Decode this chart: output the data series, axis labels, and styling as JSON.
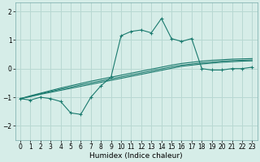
{
  "xlabel": "Humidex (Indice chaleur)",
  "background_color": "#d6ede8",
  "grid_color": "#b8d8d2",
  "line_color": "#1a7a6e",
  "xlim": [
    -0.5,
    23.5
  ],
  "ylim": [
    -2.5,
    2.3
  ],
  "x": [
    0,
    1,
    2,
    3,
    4,
    5,
    6,
    7,
    8,
    9,
    10,
    11,
    12,
    13,
    14,
    15,
    16,
    17,
    18,
    19,
    20,
    21,
    22,
    23
  ],
  "y_main": [
    -1.05,
    -1.1,
    -1.0,
    -1.05,
    -1.15,
    -1.55,
    -1.6,
    -1.0,
    -0.6,
    -0.3,
    1.15,
    1.3,
    1.35,
    1.25,
    1.75,
    1.05,
    0.95,
    1.05,
    0.0,
    -0.05,
    -0.05,
    0.0,
    0.0,
    0.05
  ],
  "y_line1": [
    -1.05,
    -0.98,
    -0.9,
    -0.83,
    -0.76,
    -0.69,
    -0.62,
    -0.55,
    -0.48,
    -0.41,
    -0.34,
    -0.27,
    -0.2,
    -0.13,
    -0.06,
    0.01,
    0.08,
    0.12,
    0.16,
    0.19,
    0.22,
    0.24,
    0.26,
    0.27
  ],
  "y_line2": [
    -1.05,
    -0.97,
    -0.88,
    -0.8,
    -0.72,
    -0.65,
    -0.57,
    -0.5,
    -0.43,
    -0.36,
    -0.29,
    -0.22,
    -0.15,
    -0.08,
    -0.01,
    0.06,
    0.12,
    0.16,
    0.2,
    0.23,
    0.26,
    0.28,
    0.29,
    0.3
  ],
  "y_line3": [
    -1.05,
    -0.95,
    -0.86,
    -0.77,
    -0.68,
    -0.6,
    -0.52,
    -0.44,
    -0.37,
    -0.3,
    -0.23,
    -0.16,
    -0.09,
    -0.02,
    0.05,
    0.12,
    0.18,
    0.22,
    0.26,
    0.29,
    0.31,
    0.33,
    0.34,
    0.35
  ],
  "xticks": [
    0,
    1,
    2,
    3,
    4,
    5,
    6,
    7,
    8,
    9,
    10,
    11,
    12,
    13,
    14,
    15,
    16,
    17,
    18,
    19,
    20,
    21,
    22,
    23
  ],
  "yticks": [
    -2,
    -1,
    0,
    1,
    2
  ],
  "xlabel_fontsize": 6.5,
  "tick_fontsize": 5.5
}
